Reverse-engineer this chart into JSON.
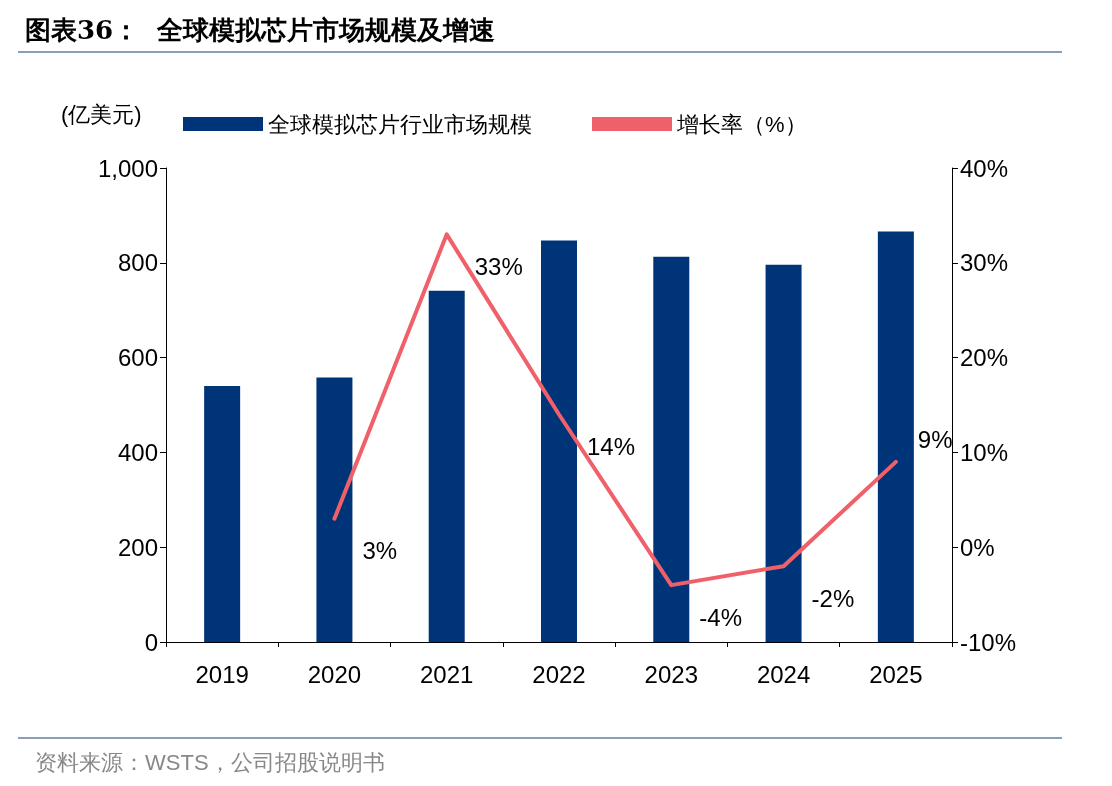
{
  "chart_data": {
    "type": "bar",
    "title": "图表36：  全球模拟芯片市场规模及增速",
    "ylabel": "(亿美元)",
    "annotations": [
      "资料来源：WSTS，公司招股说明书"
    ],
    "categories": [
      "2019",
      "2020",
      "2021",
      "2022",
      "2023",
      "2024",
      "2025"
    ],
    "series": [
      {
        "name": "全球模拟芯片行业市场规模",
        "color": "#003478",
        "values": [
          540,
          558,
          741,
          847,
          813,
          796,
          866
        ]
      },
      {
        "name": "增长率（%）",
        "type": "line",
        "axis": "y2",
        "color": "#f0606a",
        "values": [
          null,
          3,
          33,
          14,
          -4,
          -2,
          9
        ],
        "value_labels": [
          null,
          "3%",
          "33%",
          "14%",
          "-4%",
          "-2%",
          "9%"
        ]
      }
    ],
    "ylim": [
      0,
      1000
    ],
    "yticks": [
      0,
      200,
      400,
      600,
      800,
      {
        "value": 1000,
        "label": "1,000"
      }
    ],
    "y2lim": [
      -10,
      40
    ],
    "y2ticks": [
      {
        "value": -10,
        "label": "-10%"
      },
      {
        "value": 0,
        "label": "0%"
      },
      {
        "value": 10,
        "label": "10%"
      },
      {
        "value": 20,
        "label": "20%"
      },
      {
        "value": 30,
        "label": "30%"
      },
      {
        "value": 40,
        "label": "40%"
      }
    ],
    "grid": false,
    "legend": "top",
    "marker": "none",
    "line_style": "solid"
  }
}
